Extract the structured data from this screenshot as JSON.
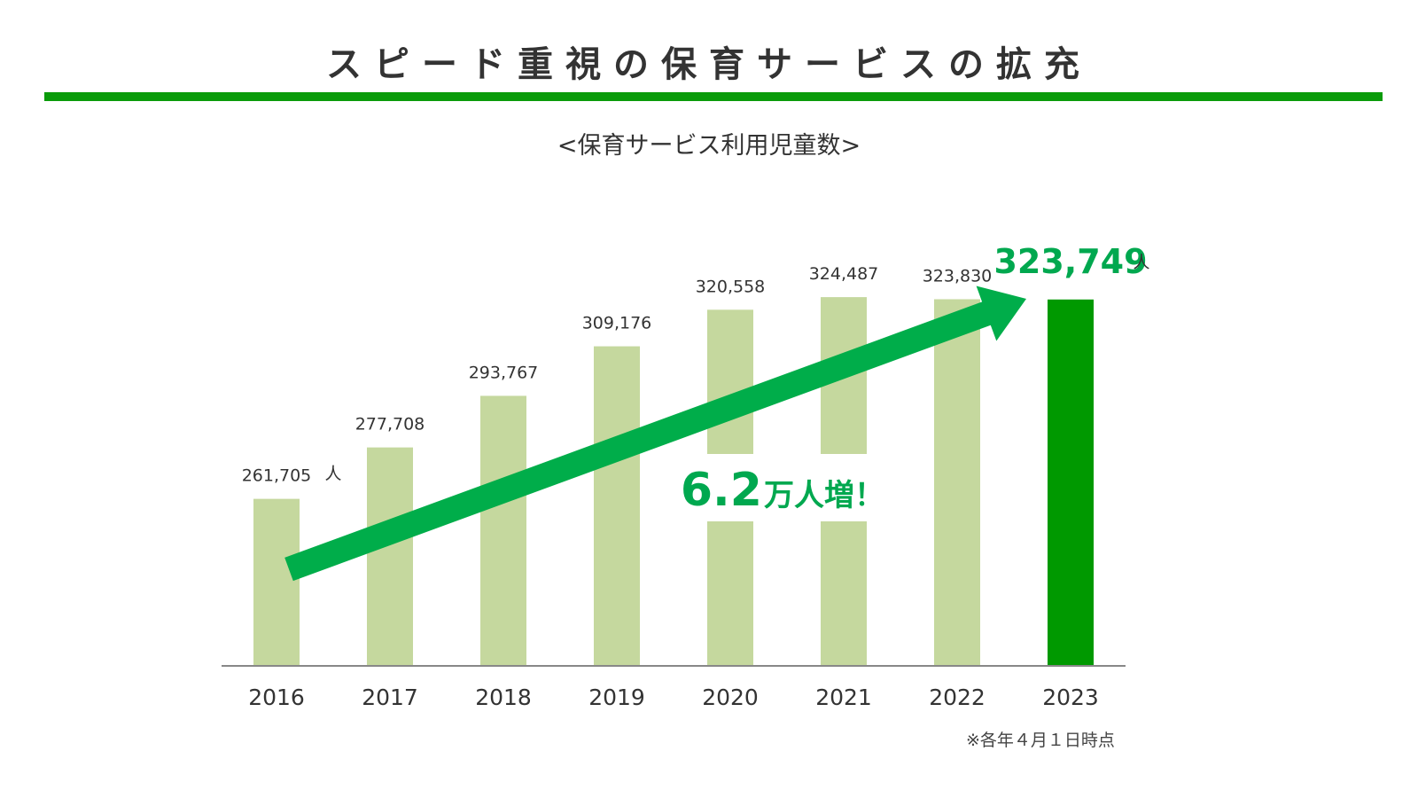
{
  "header": {
    "title": "スピード重視の保育サービスの拡充",
    "subtitle": "<保育サービス利用児童数>"
  },
  "colors": {
    "rule": "#0a9b0a",
    "bar_light": "#c5d89e",
    "bar_highlight": "#009900",
    "arrow": "#00ad4a",
    "highlight_text": "#00a84f",
    "axis": "#888888"
  },
  "chart_data": {
    "type": "bar",
    "title": "<保育サービス利用児童数>",
    "categories": [
      "2016",
      "2017",
      "2018",
      "2019",
      "2020",
      "2021",
      "2022",
      "2023"
    ],
    "values": [
      261705,
      277708,
      293767,
      309176,
      320558,
      324487,
      323830,
      323749
    ],
    "value_labels": [
      "261,705",
      "277,708",
      "293,767",
      "309,176",
      "320,558",
      "324,487",
      "323,830",
      "323,749"
    ],
    "unit": "人",
    "highlight_index": 7,
    "ylim": [
      210000,
      335000
    ],
    "grid": false,
    "annotations": {
      "arrow_from": "2016",
      "arrow_to": "2023",
      "increase_number": "6.2",
      "increase_suffix": "万人増！"
    }
  },
  "footnote": "※各年４月１日時点"
}
